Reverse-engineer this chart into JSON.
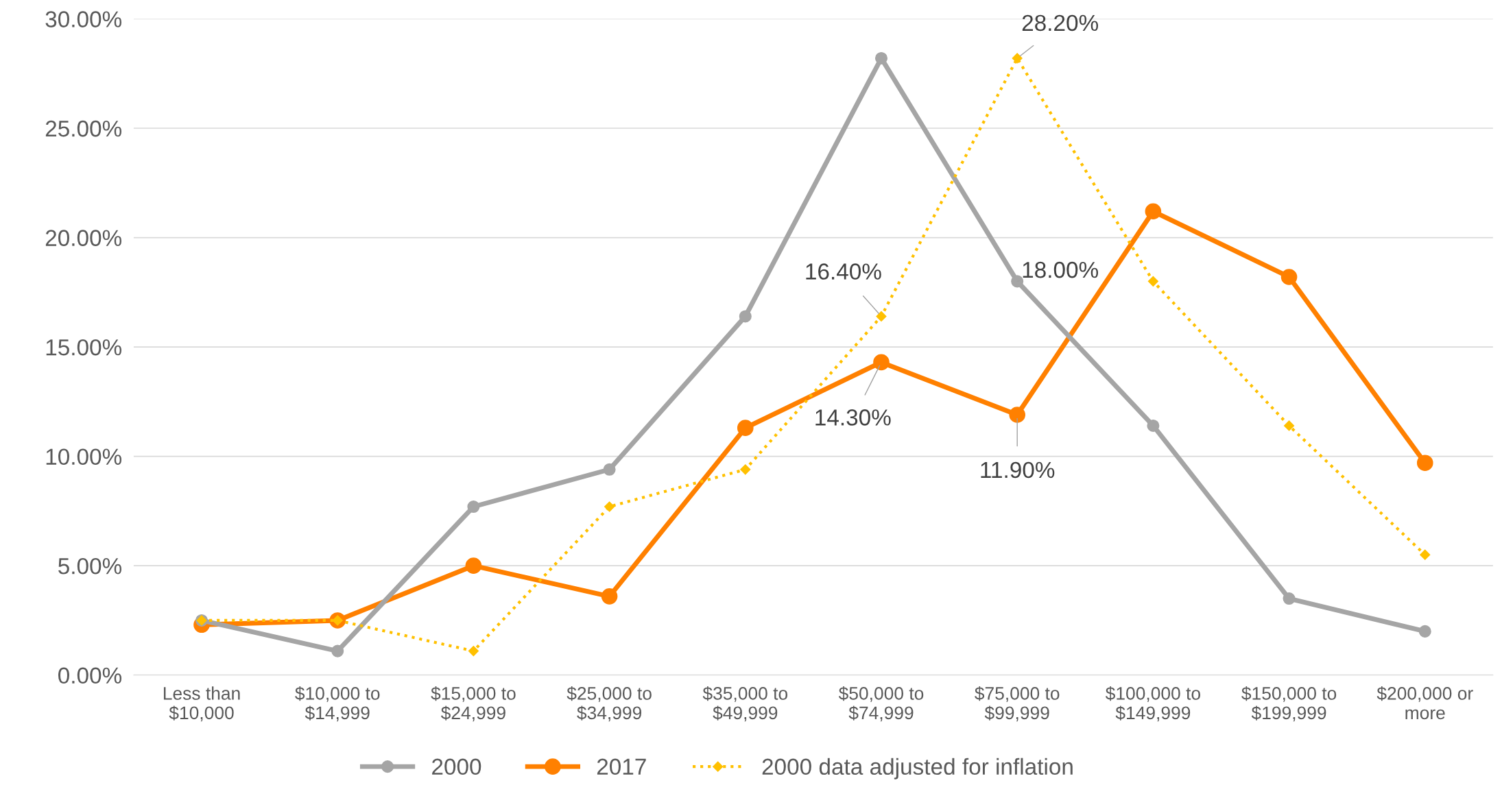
{
  "chart_data": {
    "type": "line",
    "categories": [
      "Less than\n$10,000",
      "$10,000 to\n$14,999",
      "$15,000 to\n$24,999",
      "$25,000 to\n$34,999",
      "$35,000 to\n$49,999",
      "$50,000 to\n$74,999",
      "$75,000 to\n$99,999",
      "$100,000 to\n$149,999",
      "$150,000 to\n$199,999",
      "$200,000 or\nmore"
    ],
    "series": [
      {
        "name": "2000",
        "color": "#a5a5a5",
        "marker": "circle",
        "line_style": "solid",
        "values": [
          2.5,
          1.1,
          7.7,
          9.4,
          16.4,
          28.2,
          18.0,
          11.4,
          3.5,
          2.0
        ],
        "value_labels": [
          null,
          null,
          null,
          null,
          null,
          null,
          "18.00%",
          null,
          null,
          null
        ]
      },
      {
        "name": "2017",
        "color": "#ff8000",
        "marker": "circle",
        "line_style": "solid",
        "values": [
          2.3,
          2.5,
          5.0,
          3.6,
          11.3,
          14.3,
          11.9,
          21.2,
          18.2,
          9.7
        ],
        "value_labels": [
          null,
          null,
          null,
          null,
          null,
          "14.30%",
          "11.90%",
          null,
          null,
          null
        ]
      },
      {
        "name": "2000 data adjusted for inflation",
        "color": "#ffc000",
        "marker": "diamond",
        "line_style": "dotted",
        "values": [
          2.5,
          2.5,
          1.1,
          7.7,
          9.4,
          16.4,
          28.2,
          18.0,
          11.4,
          5.5
        ],
        "value_labels": [
          null,
          null,
          null,
          null,
          null,
          "16.40%",
          "28.20%",
          null,
          null,
          null
        ]
      }
    ],
    "ylim": [
      0,
      30
    ],
    "yticks": [
      {
        "value": 0,
        "label": "0.00%"
      },
      {
        "value": 5,
        "label": "5.00%"
      },
      {
        "value": 10,
        "label": "10.00%"
      },
      {
        "value": 15,
        "label": "15.00%"
      },
      {
        "value": 20,
        "label": "20.00%"
      },
      {
        "value": 25,
        "label": "25.00%"
      },
      {
        "value": 30,
        "label": "30.00%"
      }
    ],
    "grid": "y",
    "legend": "bottom"
  }
}
